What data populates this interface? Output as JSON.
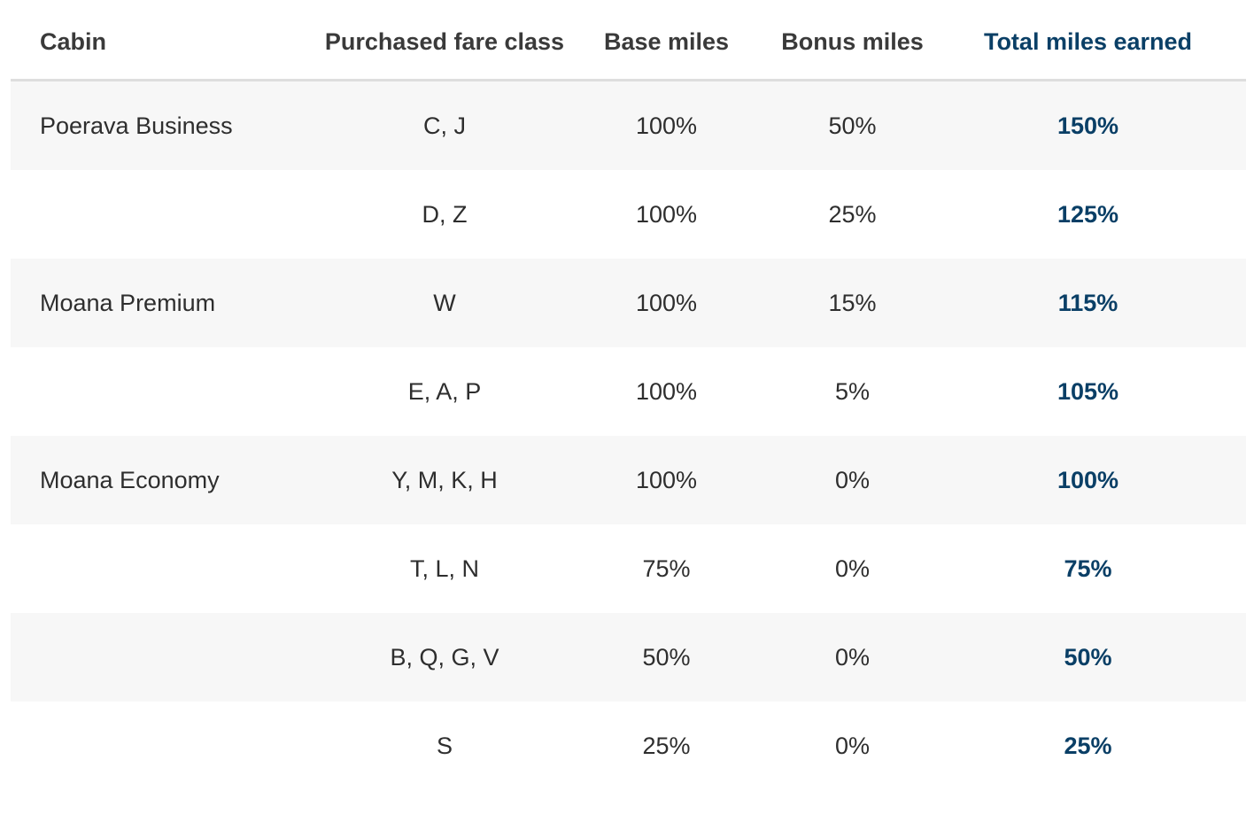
{
  "colors": {
    "accent": "#0a3f66",
    "text": "#2e2e2e",
    "shaded_row": "#f7f7f7",
    "divider": "#dedede"
  },
  "table": {
    "headers": {
      "cabin": "Cabin",
      "fare_class": "Purchased fare class",
      "base_miles": "Base miles",
      "bonus_miles": "Bonus miles",
      "total_miles": "Total miles earned"
    },
    "rows": [
      {
        "cabin": "Poerava Business",
        "fare_class": "C, J",
        "base": "100%",
        "bonus": "50%",
        "total": "150%",
        "shaded": true
      },
      {
        "cabin": "",
        "fare_class": "D, Z",
        "base": "100%",
        "bonus": "25%",
        "total": "125%",
        "shaded": false
      },
      {
        "cabin": "Moana Premium",
        "fare_class": "W",
        "base": "100%",
        "bonus": "15%",
        "total": "115%",
        "shaded": true
      },
      {
        "cabin": "",
        "fare_class": "E, A, P",
        "base": "100%",
        "bonus": "5%",
        "total": "105%",
        "shaded": false
      },
      {
        "cabin": "Moana Economy",
        "fare_class": "Y, M, K, H",
        "base": "100%",
        "bonus": "0%",
        "total": "100%",
        "shaded": true
      },
      {
        "cabin": "",
        "fare_class": "T, L, N",
        "base": "75%",
        "bonus": "0%",
        "total": "75%",
        "shaded": false
      },
      {
        "cabin": "",
        "fare_class": "B, Q, G, V",
        "base": "50%",
        "bonus": "0%",
        "total": "50%",
        "shaded": true
      },
      {
        "cabin": "",
        "fare_class": "S",
        "base": "25%",
        "bonus": "0%",
        "total": "25%",
        "shaded": false
      }
    ]
  }
}
